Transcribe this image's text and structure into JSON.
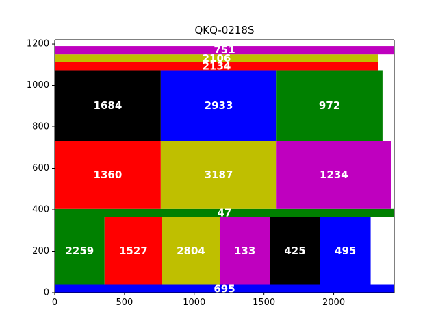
{
  "chart_data": {
    "type": "bar",
    "layout": "packed rectangles (treemap-style)",
    "title": "QKQ-0218S",
    "xlabel": "",
    "ylabel": "",
    "xlim": [
      0,
      2434
    ],
    "ylim": [
      0,
      1220
    ],
    "x_ticks": [
      0,
      500,
      1000,
      1500,
      2000
    ],
    "y_ticks": [
      0,
      200,
      400,
      600,
      800,
      1000,
      1200
    ],
    "grid": false,
    "legend": "none",
    "rects": [
      {
        "label": "695",
        "x0": 0,
        "x1": 2434,
        "y0": 0,
        "y1": 38,
        "color": "#0000ff"
      },
      {
        "label": "2259",
        "x0": 0,
        "x1": 357,
        "y0": 38,
        "y1": 366,
        "color": "#008000"
      },
      {
        "label": "1527",
        "x0": 357,
        "x1": 770,
        "y0": 38,
        "y1": 366,
        "color": "#ff0000"
      },
      {
        "label": "2804",
        "x0": 770,
        "x1": 1183,
        "y0": 38,
        "y1": 366,
        "color": "#bfbf00"
      },
      {
        "label": "133",
        "x0": 1183,
        "x1": 1542,
        "y0": 38,
        "y1": 366,
        "color": "#bf00bf"
      },
      {
        "label": "425",
        "x0": 1542,
        "x1": 1903,
        "y0": 38,
        "y1": 366,
        "color": "#000000"
      },
      {
        "label": "495",
        "x0": 1903,
        "x1": 2265,
        "y0": 38,
        "y1": 366,
        "color": "#0000ff"
      },
      {
        "label": "47",
        "x0": 0,
        "x1": 2434,
        "y0": 366,
        "y1": 404,
        "color": "#008000"
      },
      {
        "label": "1360",
        "x0": 0,
        "x1": 760,
        "y0": 404,
        "y1": 733,
        "color": "#ff0000"
      },
      {
        "label": "3187",
        "x0": 760,
        "x1": 1591,
        "y0": 404,
        "y1": 733,
        "color": "#bfbf00"
      },
      {
        "label": "1234",
        "x0": 1591,
        "x1": 2412,
        "y0": 404,
        "y1": 733,
        "color": "#bf00bf"
      },
      {
        "label": "1684",
        "x0": 0,
        "x1": 760,
        "y0": 733,
        "y1": 1073,
        "color": "#000000"
      },
      {
        "label": "2933",
        "x0": 760,
        "x1": 1591,
        "y0": 733,
        "y1": 1073,
        "color": "#0000ff"
      },
      {
        "label": "972",
        "x0": 1591,
        "x1": 2350,
        "y0": 733,
        "y1": 1073,
        "color": "#008000"
      },
      {
        "label": "2134",
        "x0": 0,
        "x1": 2321,
        "y0": 1073,
        "y1": 1113,
        "color": "#ff0000"
      },
      {
        "label": "2106",
        "x0": 0,
        "x1": 2321,
        "y0": 1113,
        "y1": 1150,
        "color": "#bfbf00"
      },
      {
        "label": "751",
        "x0": 0,
        "x1": 2434,
        "y0": 1150,
        "y1": 1190,
        "color": "#bf00bf"
      }
    ]
  }
}
